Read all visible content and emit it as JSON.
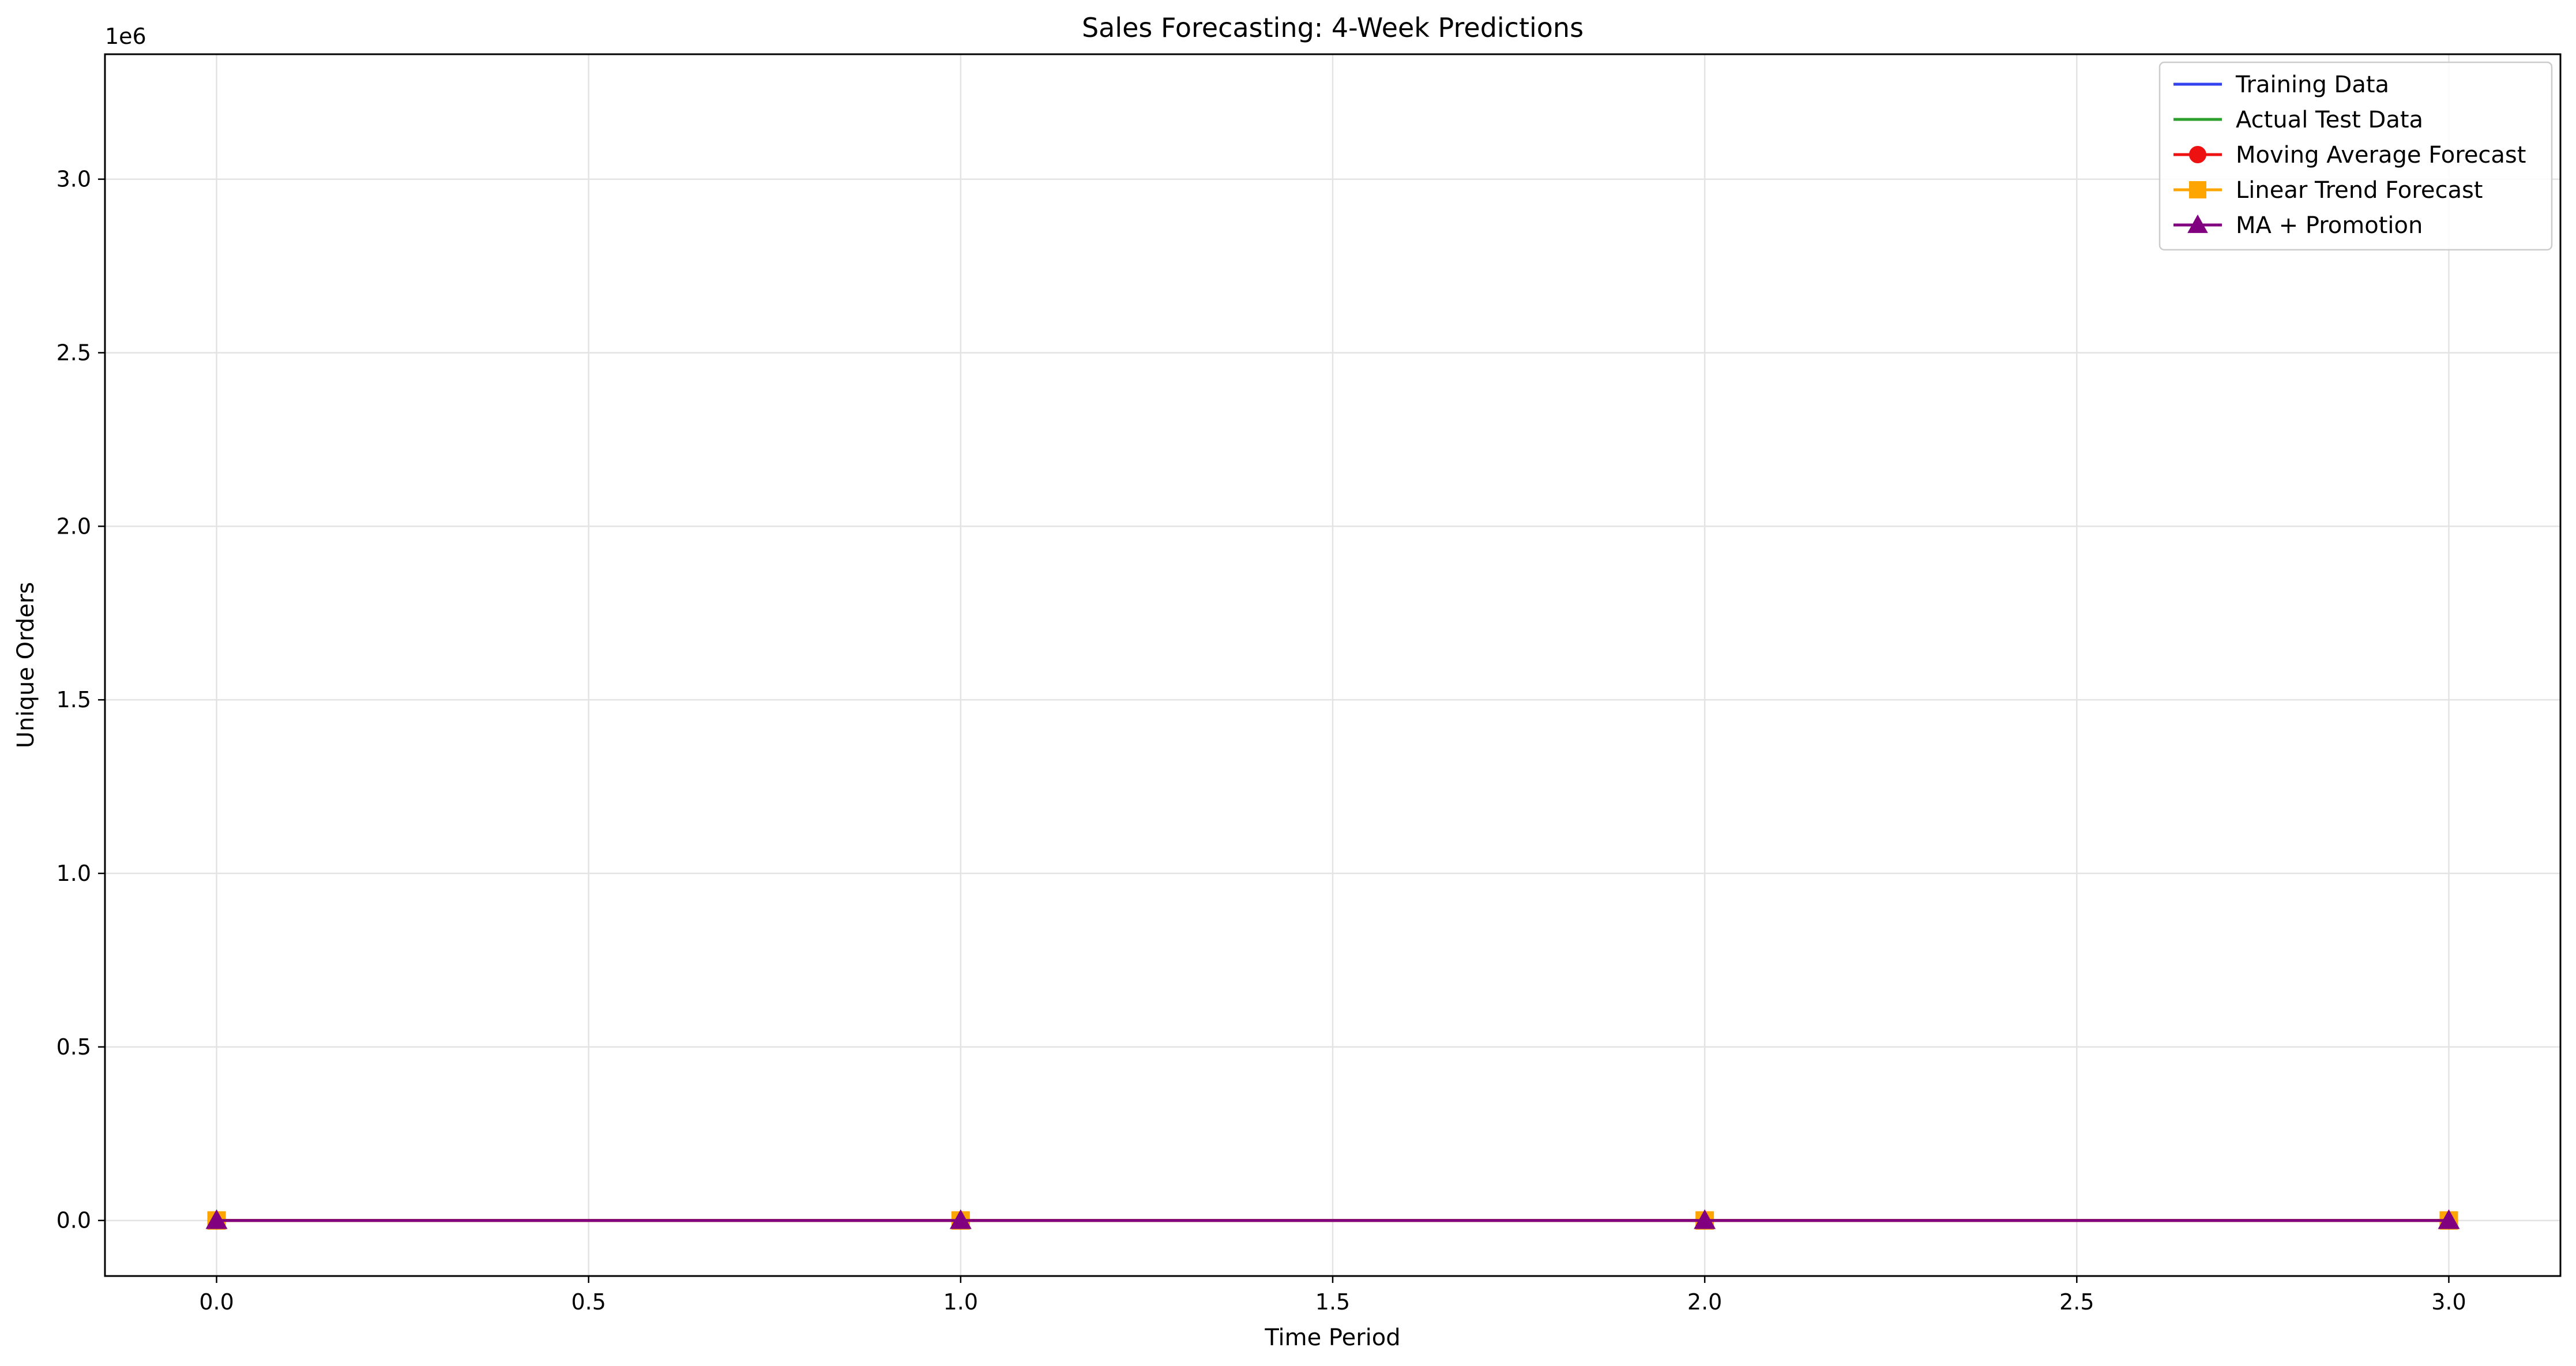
{
  "chart_data": {
    "type": "line",
    "title": "Sales Forecasting: 4-Week Predictions",
    "xlabel": "Time Period",
    "ylabel": "Unique Orders",
    "y_offset_label": "1e6",
    "xlim": [
      -0.15,
      3.15
    ],
    "ylim": [
      -160000,
      3360000
    ],
    "x_ticks": [
      0.0,
      0.5,
      1.0,
      1.5,
      2.0,
      2.5,
      3.0
    ],
    "x_tick_labels": [
      "0.0",
      "0.5",
      "1.0",
      "1.5",
      "2.0",
      "2.5",
      "3.0"
    ],
    "y_ticks": [
      0,
      500000,
      1000000,
      1500000,
      2000000,
      2500000,
      3000000
    ],
    "y_tick_labels": [
      "0.0",
      "0.5",
      "1.0",
      "1.5",
      "2.0",
      "2.5",
      "3.0"
    ],
    "grid": true,
    "legend_position": "top-right",
    "series": [
      {
        "name": "Training Data",
        "color": "#3344ee",
        "marker": "none",
        "x": [
          0,
          1,
          2,
          3
        ],
        "values": [
          0,
          0,
          0,
          0
        ]
      },
      {
        "name": "Actual Test Data",
        "color": "#2ca02c",
        "marker": "none",
        "x": [
          0,
          1,
          2,
          3
        ],
        "values": [
          0,
          0,
          0,
          0
        ]
      },
      {
        "name": "Moving Average Forecast",
        "color": "#ee1111",
        "marker": "circle",
        "x": [
          0,
          1,
          2,
          3
        ],
        "values": [
          0,
          0,
          0,
          0
        ]
      },
      {
        "name": "Linear Trend Forecast",
        "color": "#ffa500",
        "marker": "square",
        "x": [
          0,
          1,
          2,
          3
        ],
        "values": [
          0,
          0,
          0,
          0
        ]
      },
      {
        "name": "MA + Promotion",
        "color": "#800080",
        "marker": "triangle",
        "x": [
          0,
          1,
          2,
          3
        ],
        "values": [
          0,
          0,
          0,
          0
        ]
      }
    ]
  }
}
